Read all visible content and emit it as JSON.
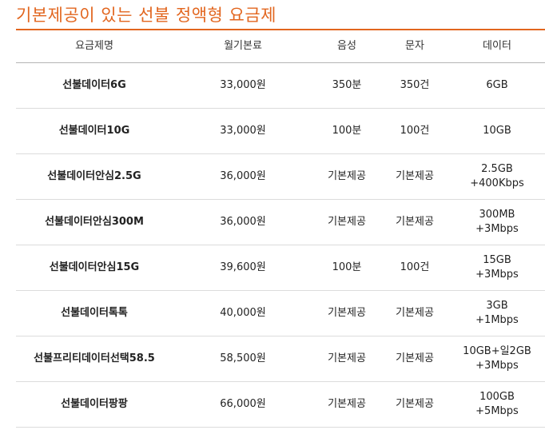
{
  "title": "기본제공이 있는 선불 정액형 요금제",
  "table": {
    "headers": [
      "요금제명",
      "월기본료",
      "음성",
      "문자",
      "데이터"
    ],
    "rows": [
      {
        "name": "선불데이터6G",
        "fee": "33,000원",
        "voice": "350분",
        "sms": "350건",
        "data": [
          "6GB"
        ]
      },
      {
        "name": "선불데이터10G",
        "fee": "33,000원",
        "voice": "100분",
        "sms": "100건",
        "data": [
          "10GB"
        ]
      },
      {
        "name": "선불데이터안심2.5G",
        "fee": "36,000원",
        "voice": "기본제공",
        "sms": "기본제공",
        "data": [
          "2.5GB",
          "+400Kbps"
        ]
      },
      {
        "name": "선불데이터안심300M",
        "fee": "36,000원",
        "voice": "기본제공",
        "sms": "기본제공",
        "data": [
          "300MB",
          "+3Mbps"
        ]
      },
      {
        "name": "선불데이터안심15G",
        "fee": "39,600원",
        "voice": "100분",
        "sms": "100건",
        "data": [
          "15GB",
          "+3Mbps"
        ]
      },
      {
        "name": "선불데이터톡톡",
        "fee": "40,000원",
        "voice": "기본제공",
        "sms": "기본제공",
        "data": [
          "3GB",
          "+1Mbps"
        ]
      },
      {
        "name": "선불프리티데이터선택58.5",
        "fee": "58,500원",
        "voice": "기본제공",
        "sms": "기본제공",
        "data": [
          "10GB+일2GB",
          "+3Mbps"
        ]
      },
      {
        "name": "선불데이터팡팡",
        "fee": "66,000원",
        "voice": "기본제공",
        "sms": "기본제공",
        "data": [
          "100GB",
          "+5Mbps"
        ]
      }
    ]
  }
}
